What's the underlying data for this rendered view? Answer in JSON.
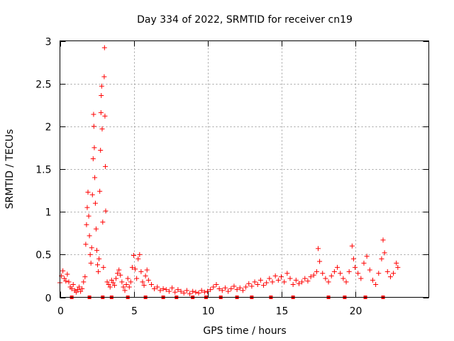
{
  "chart_data": {
    "type": "scatter",
    "title": "Day 334 of 2022, SRMTID for receiver cn19",
    "xlabel": "GPS time / hours",
    "ylabel": "SRMTID / TECUs",
    "xlim": [
      0,
      25
    ],
    "ylim": [
      0,
      3
    ],
    "x_ticks": [
      0,
      5,
      10,
      15,
      20
    ],
    "x_tick_labels": [
      "0",
      "5",
      "10",
      "15",
      "20"
    ],
    "y_ticks": [
      0,
      0.5,
      1,
      1.5,
      2,
      2.5,
      3
    ],
    "y_tick_labels": [
      "0",
      "0.5",
      "1",
      "1.5",
      "2",
      "2.5",
      "3"
    ],
    "grid": true,
    "marker": "+",
    "color": "#ff0000",
    "series": [
      {
        "name": "SRMTID",
        "points": [
          [
            0.0,
            0.17
          ],
          [
            0.1,
            0.25
          ],
          [
            0.2,
            0.31
          ],
          [
            0.3,
            0.22
          ],
          [
            0.4,
            0.19
          ],
          [
            0.5,
            0.27
          ],
          [
            0.6,
            0.18
          ],
          [
            0.7,
            0.12
          ],
          [
            0.8,
            0.1
          ],
          [
            0.9,
            0.15
          ],
          [
            1.0,
            0.08
          ],
          [
            1.1,
            0.06
          ],
          [
            1.2,
            0.09
          ],
          [
            1.3,
            0.12
          ],
          [
            1.4,
            0.07
          ],
          [
            1.5,
            0.1
          ],
          [
            1.6,
            0.18
          ],
          [
            1.7,
            0.24
          ],
          [
            1.75,
            0.62
          ],
          [
            1.8,
            0.85
          ],
          [
            1.85,
            1.05
          ],
          [
            1.9,
            1.23
          ],
          [
            1.95,
            0.95
          ],
          [
            2.0,
            0.72
          ],
          [
            2.05,
            0.5
          ],
          [
            2.1,
            0.4
          ],
          [
            2.15,
            0.58
          ],
          [
            2.2,
            1.2
          ],
          [
            2.25,
            1.62
          ],
          [
            2.28,
            2.14
          ],
          [
            2.3,
            2.0
          ],
          [
            2.33,
            1.75
          ],
          [
            2.36,
            1.4
          ],
          [
            2.4,
            1.1
          ],
          [
            2.45,
            0.8
          ],
          [
            2.5,
            0.55
          ],
          [
            2.55,
            0.38
          ],
          [
            2.6,
            0.3
          ],
          [
            2.65,
            0.45
          ],
          [
            2.7,
            1.24
          ],
          [
            2.75,
            1.72
          ],
          [
            2.78,
            2.16
          ],
          [
            2.8,
            2.36
          ],
          [
            2.83,
            2.47
          ],
          [
            2.86,
            1.97
          ],
          [
            2.9,
            0.88
          ],
          [
            2.95,
            0.35
          ],
          [
            3.0,
            2.58
          ],
          [
            3.02,
            2.92
          ],
          [
            3.05,
            2.12
          ],
          [
            3.08,
            1.53
          ],
          [
            3.1,
            1.01
          ],
          [
            3.2,
            0.18
          ],
          [
            3.3,
            0.15
          ],
          [
            3.4,
            0.12
          ],
          [
            3.5,
            0.2
          ],
          [
            3.6,
            0.17
          ],
          [
            3.7,
            0.14
          ],
          [
            3.8,
            0.22
          ],
          [
            3.9,
            0.28
          ],
          [
            4.0,
            0.32
          ],
          [
            4.1,
            0.26
          ],
          [
            4.2,
            0.18
          ],
          [
            4.3,
            0.12
          ],
          [
            4.4,
            0.08
          ],
          [
            4.5,
            0.15
          ],
          [
            4.6,
            0.22
          ],
          [
            4.7,
            0.12
          ],
          [
            4.8,
            0.18
          ],
          [
            4.9,
            0.35
          ],
          [
            5.0,
            0.49
          ],
          [
            5.1,
            0.33
          ],
          [
            5.2,
            0.22
          ],
          [
            5.3,
            0.45
          ],
          [
            5.4,
            0.5
          ],
          [
            5.5,
            0.3
          ],
          [
            5.6,
            0.18
          ],
          [
            5.7,
            0.14
          ],
          [
            5.8,
            0.25
          ],
          [
            5.9,
            0.32
          ],
          [
            6.0,
            0.2
          ],
          [
            6.2,
            0.15
          ],
          [
            6.4,
            0.1
          ],
          [
            6.6,
            0.12
          ],
          [
            6.8,
            0.08
          ],
          [
            7.0,
            0.1
          ],
          [
            7.2,
            0.09
          ],
          [
            7.4,
            0.07
          ],
          [
            7.6,
            0.11
          ],
          [
            7.8,
            0.06
          ],
          [
            8.0,
            0.09
          ],
          [
            8.2,
            0.07
          ],
          [
            8.4,
            0.05
          ],
          [
            8.6,
            0.08
          ],
          [
            8.8,
            0.04
          ],
          [
            9.0,
            0.07
          ],
          [
            9.2,
            0.06
          ],
          [
            9.4,
            0.05
          ],
          [
            9.6,
            0.08
          ],
          [
            9.8,
            0.06
          ],
          [
            10.0,
            0.07
          ],
          [
            10.2,
            0.09
          ],
          [
            10.4,
            0.12
          ],
          [
            10.6,
            0.15
          ],
          [
            10.8,
            0.1
          ],
          [
            11.0,
            0.08
          ],
          [
            11.2,
            0.11
          ],
          [
            11.4,
            0.07
          ],
          [
            11.6,
            0.1
          ],
          [
            11.8,
            0.13
          ],
          [
            12.0,
            0.09
          ],
          [
            12.2,
            0.11
          ],
          [
            12.4,
            0.08
          ],
          [
            12.6,
            0.12
          ],
          [
            12.8,
            0.16
          ],
          [
            13.0,
            0.13
          ],
          [
            13.2,
            0.18
          ],
          [
            13.4,
            0.15
          ],
          [
            13.6,
            0.2
          ],
          [
            13.8,
            0.14
          ],
          [
            14.0,
            0.17
          ],
          [
            14.2,
            0.22
          ],
          [
            14.4,
            0.18
          ],
          [
            14.6,
            0.25
          ],
          [
            14.8,
            0.2
          ],
          [
            15.0,
            0.24
          ],
          [
            15.2,
            0.18
          ],
          [
            15.4,
            0.28
          ],
          [
            15.6,
            0.22
          ],
          [
            15.8,
            0.15
          ],
          [
            16.0,
            0.2
          ],
          [
            16.2,
            0.16
          ],
          [
            16.4,
            0.18
          ],
          [
            16.6,
            0.22
          ],
          [
            16.8,
            0.19
          ],
          [
            17.0,
            0.24
          ],
          [
            17.2,
            0.26
          ],
          [
            17.4,
            0.3
          ],
          [
            17.5,
            0.57
          ],
          [
            17.6,
            0.42
          ],
          [
            17.8,
            0.28
          ],
          [
            18.0,
            0.22
          ],
          [
            18.2,
            0.18
          ],
          [
            18.4,
            0.25
          ],
          [
            18.6,
            0.3
          ],
          [
            18.8,
            0.35
          ],
          [
            19.0,
            0.28
          ],
          [
            19.2,
            0.22
          ],
          [
            19.4,
            0.18
          ],
          [
            19.6,
            0.3
          ],
          [
            19.8,
            0.6
          ],
          [
            19.9,
            0.45
          ],
          [
            20.0,
            0.35
          ],
          [
            20.2,
            0.28
          ],
          [
            20.4,
            0.22
          ],
          [
            20.6,
            0.4
          ],
          [
            20.8,
            0.48
          ],
          [
            21.0,
            0.32
          ],
          [
            21.2,
            0.2
          ],
          [
            21.4,
            0.15
          ],
          [
            21.6,
            0.28
          ],
          [
            21.8,
            0.45
          ],
          [
            21.9,
            0.67
          ],
          [
            22.0,
            0.52
          ],
          [
            22.2,
            0.3
          ],
          [
            22.4,
            0.24
          ],
          [
            22.6,
            0.28
          ],
          [
            22.8,
            0.4
          ],
          [
            22.9,
            0.35
          ]
        ]
      }
    ],
    "gap_markers_at_zero": [
      0.8,
      2.0,
      2.9,
      3.5,
      4.6,
      5.8,
      7.0,
      7.9,
      9.0,
      9.9,
      10.9,
      12.0,
      13.0,
      14.3,
      15.8,
      18.2,
      19.3,
      20.7,
      21.9
    ]
  }
}
